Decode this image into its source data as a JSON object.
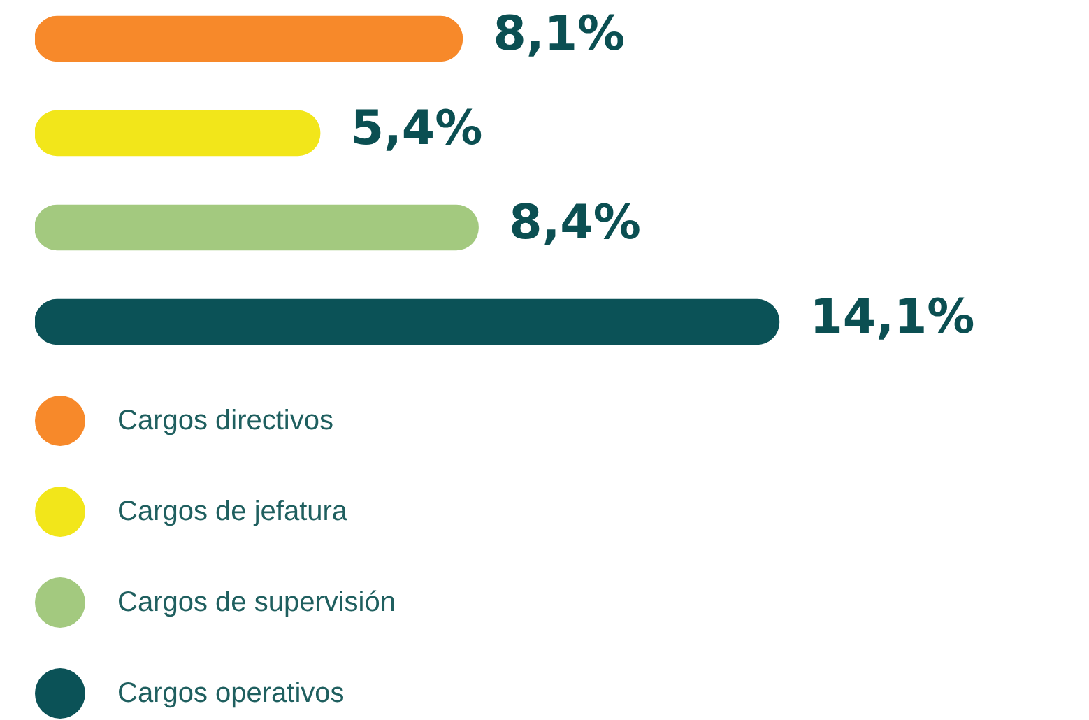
{
  "chart_data": {
    "type": "bar",
    "orientation": "horizontal",
    "categories": [
      null,
      null,
      null,
      null
    ],
    "series": [
      {
        "name": "Cargos directivos",
        "color": "#f7892a",
        "values": [
          8.1,
          null,
          null,
          null
        ],
        "value_labels": [
          "8,1%",
          null,
          null,
          null
        ]
      },
      {
        "name": "Cargos de jefatura",
        "color": "#f2e61a",
        "values": [
          null,
          5.4,
          null,
          null
        ],
        "value_labels": [
          null,
          "5,4%",
          null,
          null
        ]
      },
      {
        "name": "Cargos de supervisión",
        "color": "#a3c97f",
        "values": [
          null,
          null,
          8.4,
          null
        ],
        "value_labels": [
          null,
          null,
          "8,4%",
          null
        ]
      },
      {
        "name": "Cargos operativos",
        "color": "#0b5257",
        "values": [
          null,
          null,
          null,
          14.1
        ],
        "value_labels": [
          null,
          null,
          null,
          "14,1%"
        ]
      }
    ],
    "stacked": true,
    "legend": "bottom left"
  }
}
